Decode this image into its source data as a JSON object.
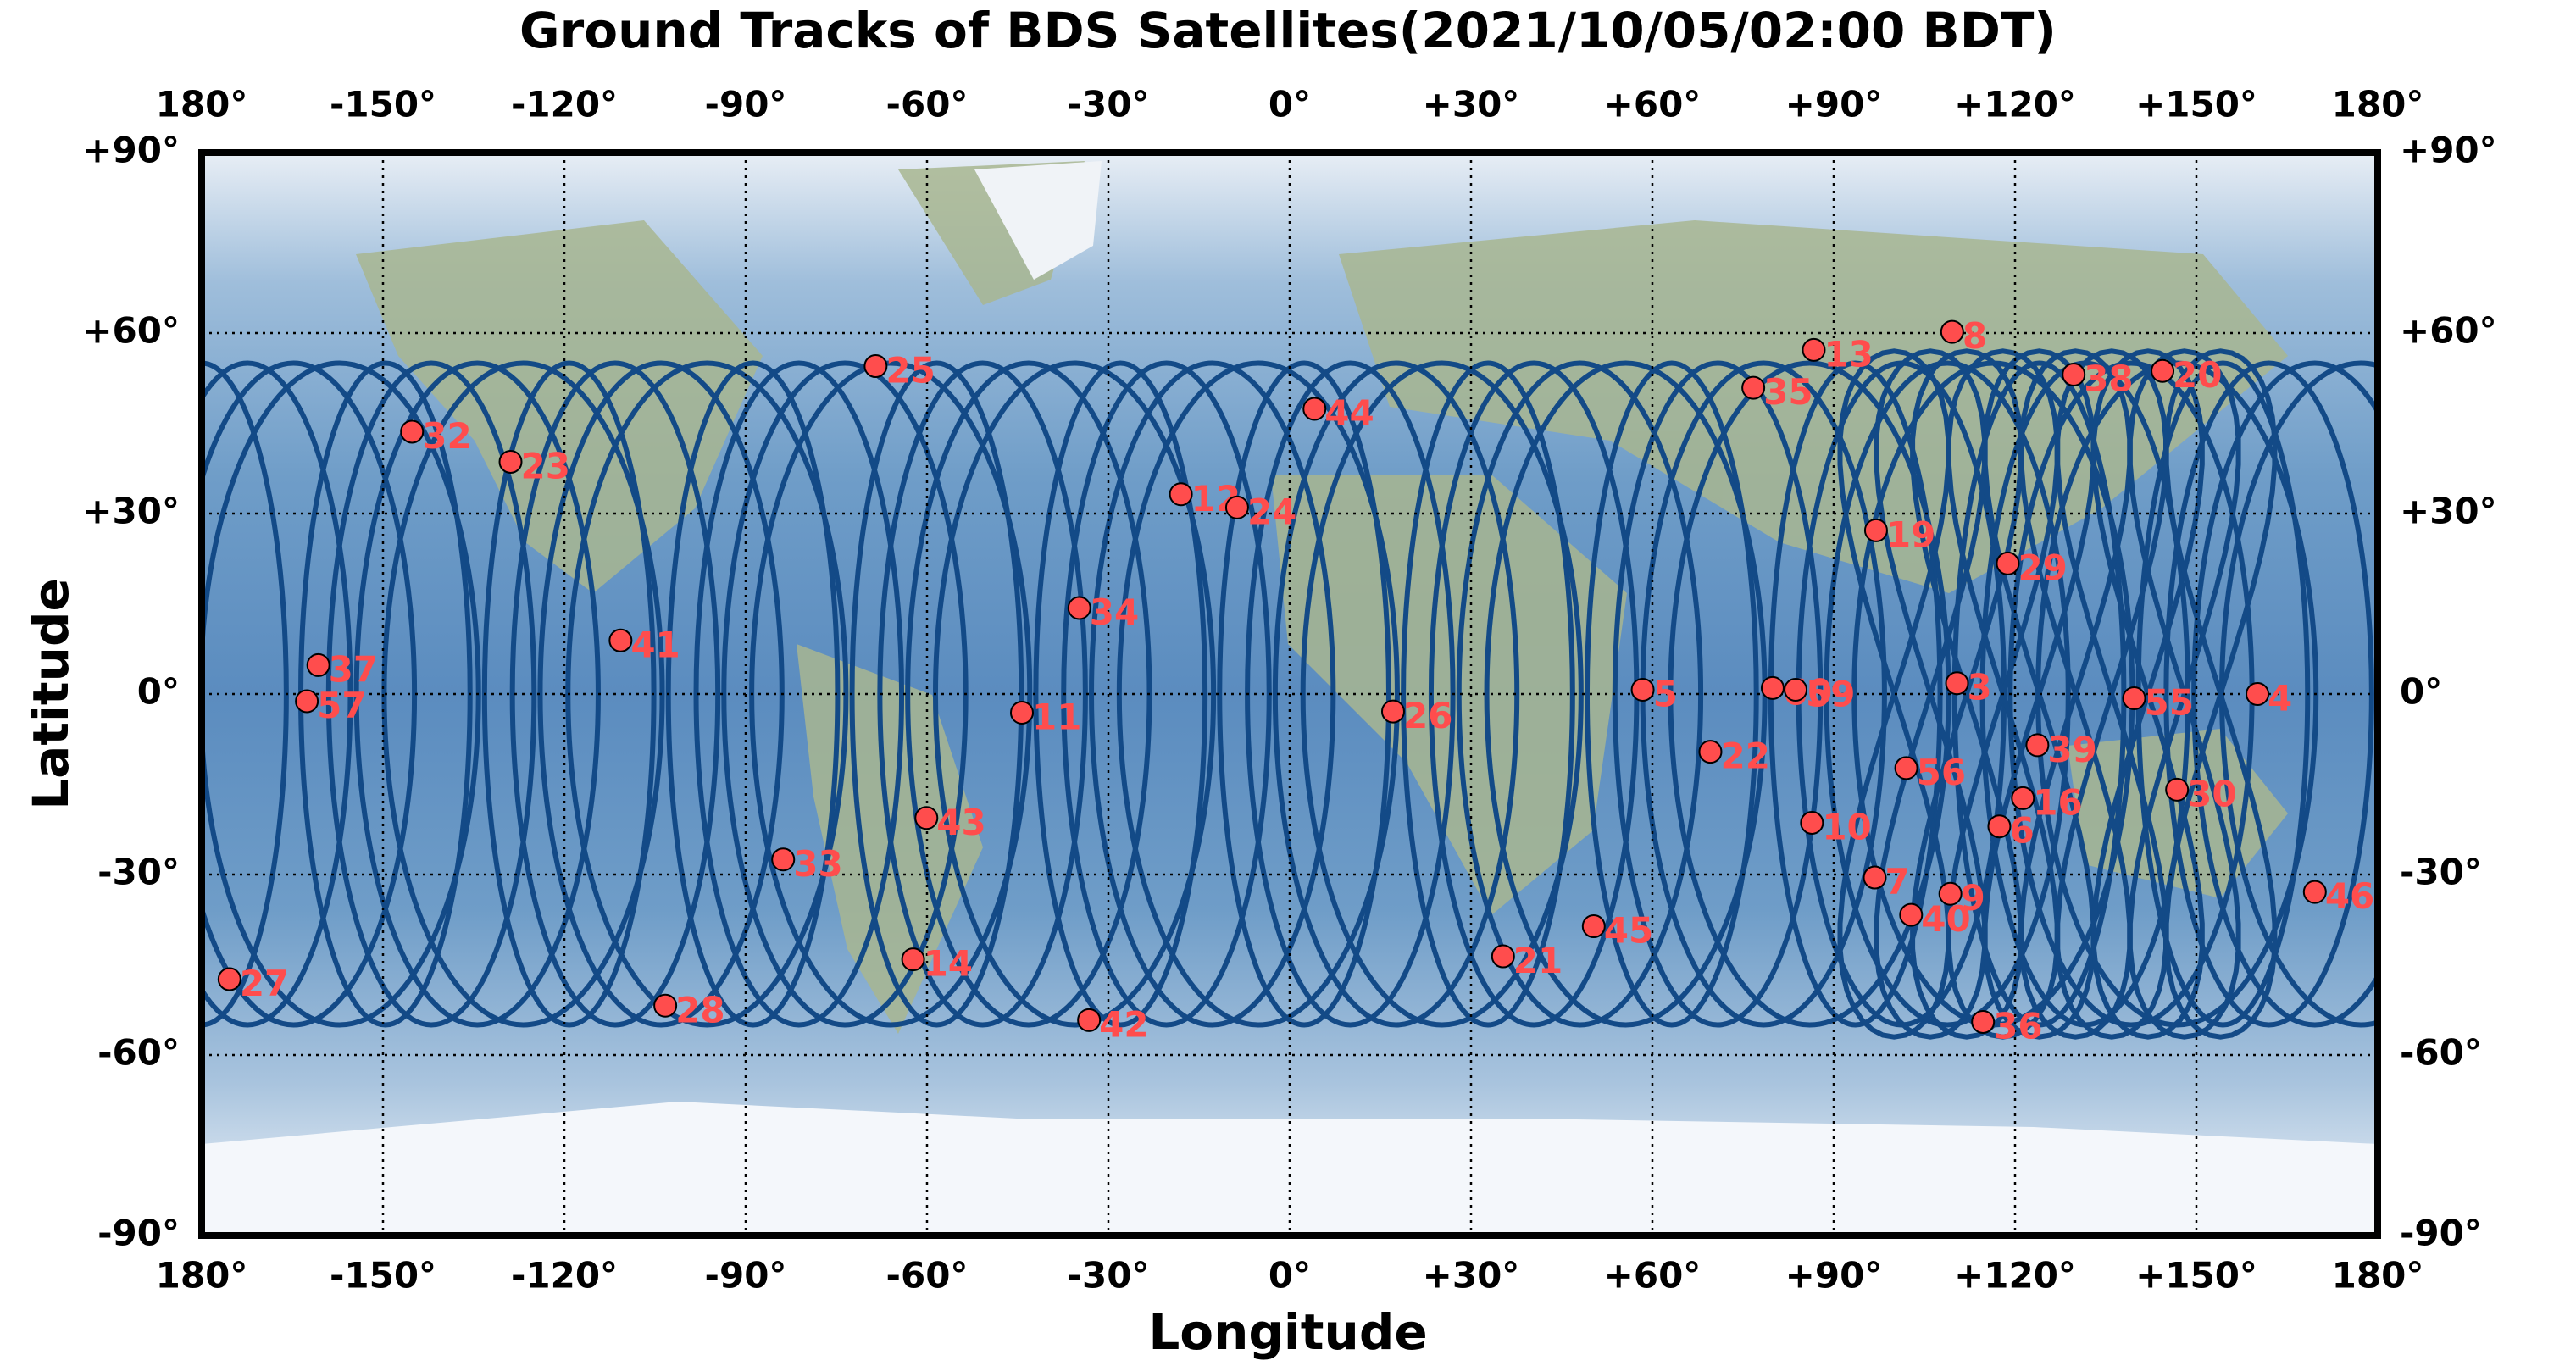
{
  "chart_data": {
    "type": "scatter",
    "title": "Ground Tracks of BDS Satellites(2021/10/05/02:00 BDT)",
    "x_label": "Longitude",
    "y_label": "Latitude",
    "xlim": [
      -180,
      180
    ],
    "ylim": [
      -90,
      90
    ],
    "xticks": [
      {
        "value": -180,
        "label": "180°"
      },
      {
        "value": -150,
        "label": "-150°"
      },
      {
        "value": -120,
        "label": "-120°"
      },
      {
        "value": -90,
        "label": "-90°"
      },
      {
        "value": -60,
        "label": "-60°"
      },
      {
        "value": -30,
        "label": "-30°"
      },
      {
        "value": 0,
        "label": "0°"
      },
      {
        "value": 30,
        "label": "+30°"
      },
      {
        "value": 60,
        "label": "+60°"
      },
      {
        "value": 90,
        "label": "+90°"
      },
      {
        "value": 120,
        "label": "+120°"
      },
      {
        "value": 150,
        "label": "+150°"
      },
      {
        "value": 180,
        "label": "180°"
      }
    ],
    "yticks": [
      {
        "value": 90,
        "label": "+90°"
      },
      {
        "value": 60,
        "label": "+60°"
      },
      {
        "value": 30,
        "label": "+30°"
      },
      {
        "value": 0,
        "label": "0°"
      },
      {
        "value": -30,
        "label": "-30°"
      },
      {
        "value": -60,
        "label": "-60°"
      },
      {
        "value": -90,
        "label": "-90°"
      }
    ],
    "grid": true,
    "color": "#ff4d4d",
    "labels": [
      "25",
      "32",
      "23",
      "44",
      "12",
      "24",
      "35",
      "13",
      "8",
      "38",
      "20",
      "19",
      "29",
      "34",
      "41",
      "37",
      "57",
      "11",
      "26",
      "5",
      "60",
      "59",
      "3",
      "55",
      "4",
      "22",
      "56",
      "39",
      "16",
      "30",
      "6",
      "10",
      "43",
      "33",
      "7",
      "9",
      "40",
      "46",
      "45",
      "21",
      "14",
      "27",
      "28",
      "42",
      "36"
    ],
    "x": [
      -68.5,
      -145.2,
      -128.9,
      4.1,
      -18,
      -8.7,
      76.7,
      86.7,
      109.6,
      129.7,
      144.4,
      97,
      118.8,
      -34.8,
      -110.7,
      -160.7,
      -162.6,
      -44.3,
      17.1,
      58.4,
      79.9,
      83.7,
      110.4,
      139.7,
      160.1,
      69.6,
      102,
      123.7,
      121.3,
      146.8,
      117.4,
      86.4,
      -60.1,
      -83.8,
      96.8,
      109.3,
      102.8,
      169.6,
      50.3,
      35.3,
      -62.3,
      -175.4,
      -103.3,
      -33.2,
      114.7
    ],
    "y": [
      54.5,
      43.6,
      38.6,
      47.4,
      33.2,
      31,
      50.9,
      57.2,
      60.2,
      53.1,
      53.7,
      27.2,
      21.7,
      14.3,
      8.9,
      4.8,
      -1.2,
      -3.1,
      -2.9,
      0.7,
      1,
      0.7,
      1.8,
      -0.7,
      0,
      -9.6,
      -12.3,
      -8.5,
      -17.3,
      -15.9,
      -22,
      -21.4,
      -20.6,
      -27.5,
      -30.5,
      -33.2,
      -36.7,
      -32.9,
      -38.6,
      -43.6,
      -44.1,
      -47.4,
      -51.8,
      -54.2,
      -54.5
    ]
  }
}
